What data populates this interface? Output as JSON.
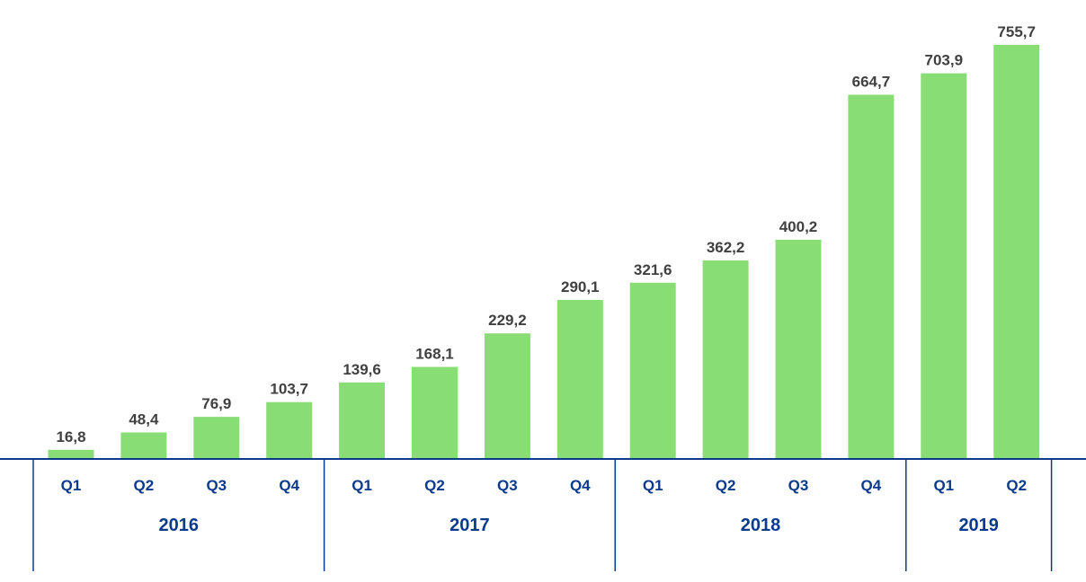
{
  "chart_data": {
    "type": "bar",
    "categories": [
      "Q1",
      "Q2",
      "Q3",
      "Q4",
      "Q1",
      "Q2",
      "Q3",
      "Q4",
      "Q1",
      "Q2",
      "Q3",
      "Q4",
      "Q1",
      "Q2"
    ],
    "year_groups": [
      {
        "year": "2016",
        "count": 4
      },
      {
        "year": "2017",
        "count": 4
      },
      {
        "year": "2018",
        "count": 4
      },
      {
        "year": "2019",
        "count": 2
      }
    ],
    "values": [
      16.8,
      48.4,
      76.9,
      103.7,
      139.6,
      168.1,
      229.2,
      290.1,
      321.6,
      362.2,
      400.2,
      664.7,
      703.9,
      755.7
    ],
    "value_labels": [
      "16,8",
      "48,4",
      "76,9",
      "103,7",
      "139,6",
      "168,1",
      "229,2",
      "290,1",
      "321,6",
      "362,2",
      "400,2",
      "664,7",
      "703,9",
      "755,7"
    ],
    "ylim": [
      0,
      755.7
    ],
    "grid": false,
    "legend": "none",
    "colors": {
      "bar": "#88dd74",
      "axis": "#0b3a8c",
      "value_text": "#404040",
      "category_text": "#0b3a8c"
    }
  }
}
